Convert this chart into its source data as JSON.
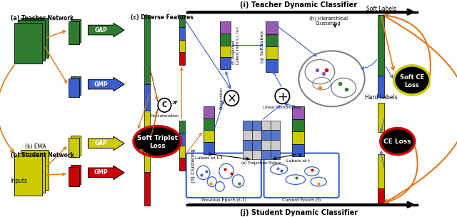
{
  "bg_color": "#ffffff",
  "teacher_color": "#2e7d2e",
  "student_color": "#cccc00",
  "blue_color": "#3a5fcd",
  "red_color": "#cc0000",
  "orange_color": "#e07818",
  "purple_color": "#8B008B",
  "bar_purple": "#9B59B6",
  "bar_green": "#2e7d2e",
  "bar_yellow": "#cccc00",
  "bar_blue": "#4472c4",
  "gray_color": "#888888",
  "labels": {
    "teacher_network": "(a) Teacher Network",
    "student_network": "(b) Student Network",
    "diverse_features": "(c) Diverse Features",
    "clustering": "(d) Clustering",
    "projection_matrix": "(e) Projection Matrix",
    "projected_labels": "(f) Projected\nLabels from t-1 to t",
    "soft_labels_g": "(g) Soft Labels",
    "hierarchical": "(h) Hierarchical\nClustering",
    "teacher_classifier": "(i) Teacher Dynamic Classifier",
    "student_classifier": "(j) Student Dynamic Classifier",
    "ema": "(k) EMA",
    "inputs": "Inputs",
    "gap": "GAP",
    "gmp": "GMP",
    "soft_triplet": "Soft Triplet\nLoss",
    "concatenation": "Concatenation",
    "linear_combination": "Linear Combination",
    "labels_t1": "Labels at t-1",
    "labels_t": "Labels at t",
    "prev_epoch": "Previous Epoch (t-1)",
    "curr_epoch": "Current Epoch (t)",
    "projection": "Projection",
    "ce_loss": "CE Loss",
    "soft_ce_loss": "Soft CE\nLoss",
    "soft_labels_right": "Soft Labels",
    "hard_labels": "Hard Labels"
  }
}
